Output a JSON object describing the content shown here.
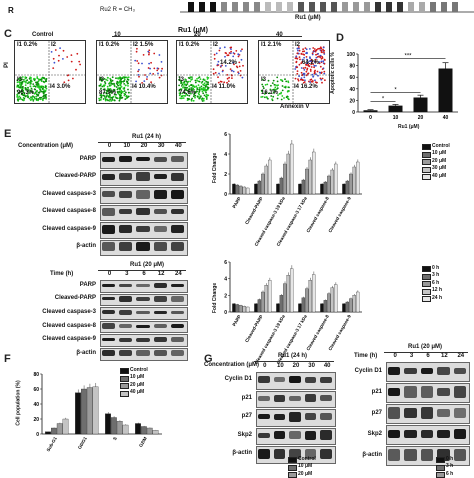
{
  "panels": {
    "C": "C",
    "D": "D",
    "E": "E",
    "F": "F",
    "G": "G"
  },
  "top": {
    "structure_label": "Ru2  R = CH₃",
    "x_label": "Ru1 (μM)"
  },
  "C": {
    "axis_y": "PI",
    "axis_x": "Annexin V",
    "header": "Ru1 (μM)",
    "plots": [
      {
        "title": "Control",
        "q1": "I1 0.2%",
        "q2": "I2",
        "q3": "I3",
        "q3v": "96.3%",
        "q4": "I4 3.0%"
      },
      {
        "title": "10",
        "q1": "I1 0.2%",
        "q2": "I2 1.5%",
        "q3": "I3",
        "q3v": "87.9%",
        "q4": "I4 10.4%"
      },
      {
        "title": "20",
        "q1": "I1 0.2%",
        "q2": "I2",
        "q2v": "14.2%",
        "q3": "I3",
        "q3v": "74.6%",
        "q4": "I4 11.0%"
      },
      {
        "title": "40",
        "q1": "I1 2.1%",
        "q2": "I2",
        "q2v": "64.2%",
        "q3": "I3",
        "q3v": "16.1%",
        "q4": "I4 16.2%"
      }
    ]
  },
  "D": {
    "ylabel": "Apoptotic cells %",
    "xlabel": "Ru1 (μM)",
    "sig": [
      "*",
      "*",
      "***"
    ]
  },
  "E": {
    "blot1": {
      "title": "Ru1 (24 h)",
      "header_label": "Concentration (μM)",
      "lanes": [
        "0",
        "10",
        "20",
        "30",
        "40"
      ],
      "rows": [
        "PARP",
        "Cleaved-PARP",
        "Cleaved caspase-3",
        "Cleaved caspase-8",
        "Cleaved caspase-9",
        "β-actin"
      ]
    },
    "blot2": {
      "title": "Ru1 (20 μM)",
      "header_label": "Time (h)",
      "lanes": [
        "0",
        "3",
        "6",
        "12",
        "24"
      ],
      "rows": [
        "PARP",
        "Cleaved-PARP",
        "Cleaved caspase-3",
        "Cleaved caspase-8",
        "Cleaved caspase-9",
        "β-actin"
      ]
    },
    "chart1_legend": [
      "Control",
      "10 μM",
      "20 μM",
      "30 μM",
      "40 μM"
    ],
    "chart2_legend": [
      "0 h",
      "3 h",
      "6 h",
      "12 h",
      "24 h"
    ],
    "ylabel": "Fold Change"
  },
  "F": {
    "ylabel": "Cell population (%)",
    "legend": [
      "Control",
      "10 μM",
      "20 μM",
      "40 μM"
    ],
    "categories": [
      "Sub-G1",
      "G0/G1",
      "S",
      "G2/M"
    ]
  },
  "G": {
    "blot1": {
      "title": "Ru1 (24 h)",
      "header_label": "Concentration (μM)",
      "lanes": [
        "0",
        "10",
        "20",
        "30",
        "40"
      ],
      "rows": [
        "Cyclin D1",
        "p21",
        "p27",
        "Skp2",
        "β-actin"
      ]
    },
    "blot2": {
      "title": "Ru1 (20 μM)",
      "header_label": "Time (h)",
      "lanes": [
        "0",
        "3",
        "6",
        "12",
        "24"
      ],
      "rows": [
        "Cyclin D1",
        "p21",
        "p27",
        "Skp2",
        "β-actin"
      ]
    }
  },
  "bottom_legend": [
    "Control",
    "10 μM",
    "20 μM"
  ],
  "bottom_legend2": [
    "0 h",
    "3 h",
    "6 h"
  ],
  "chart_data": [
    {
      "type": "bar",
      "id": "D",
      "categories": [
        "0",
        "10",
        "20",
        "40"
      ],
      "values": [
        3,
        11,
        25,
        75
      ],
      "errors": [
        1,
        2,
        4,
        10
      ],
      "ylim": [
        0,
        100
      ],
      "yticks": [
        0,
        20,
        40,
        60,
        80,
        100
      ],
      "ylabel": "Apoptotic cells %",
      "xlabel": "Ru1 (μM)"
    },
    {
      "type": "bar",
      "id": "E1",
      "categories": [
        "PARP",
        "Cleaved-PARP",
        "Cleaved caspase-3 19 kDa",
        "Cleaved caspase-3 17 kDa",
        "Cleaved caspase-8",
        "Cleaved caspase-9"
      ],
      "series": [
        {
          "name": "Control",
          "values": [
            1,
            1,
            1,
            1,
            1,
            1
          ]
        },
        {
          "name": "10 μM",
          "values": [
            0.9,
            1.3,
            1.6,
            1.4,
            1.2,
            1.3
          ]
        },
        {
          "name": "20 μM",
          "values": [
            0.8,
            2.0,
            3.0,
            2.5,
            1.8,
            2.0
          ]
        },
        {
          "name": "30 μM",
          "values": [
            0.7,
            2.8,
            4.0,
            3.4,
            2.4,
            2.7
          ]
        },
        {
          "name": "40 μM",
          "values": [
            0.6,
            3.4,
            5.0,
            4.2,
            3.0,
            3.2
          ]
        }
      ],
      "ylim": [
        0,
        6
      ]
    },
    {
      "type": "bar",
      "id": "E2",
      "categories": [
        "PARP",
        "Cleaved-PARP",
        "Cleaved caspase-3 19 kDa",
        "Cleaved caspase-3 17 kDa",
        "Cleaved caspase-8",
        "Cleaved caspase-9"
      ],
      "series": [
        {
          "name": "0 h",
          "values": [
            1,
            1,
            1,
            1,
            1,
            1
          ]
        },
        {
          "name": "3 h",
          "values": [
            0.9,
            1.5,
            2.0,
            1.7,
            1.4,
            1.2
          ]
        },
        {
          "name": "6 h",
          "values": [
            0.8,
            2.4,
            3.4,
            2.8,
            2.2,
            1.6
          ]
        },
        {
          "name": "12 h",
          "values": [
            0.7,
            3.2,
            4.4,
            3.8,
            2.9,
            2.0
          ]
        },
        {
          "name": "24 h",
          "values": [
            0.6,
            3.8,
            5.2,
            4.5,
            3.3,
            2.4
          ]
        }
      ],
      "ylim": [
        0,
        6
      ]
    },
    {
      "type": "bar",
      "id": "F",
      "categories": [
        "Sub-G1",
        "G0/G1",
        "S",
        "G2/M"
      ],
      "series": [
        {
          "name": "Control",
          "values": [
            3,
            55,
            27,
            14
          ]
        },
        {
          "name": "10 μM",
          "values": [
            8,
            60,
            22,
            10
          ]
        },
        {
          "name": "20 μM",
          "values": [
            14,
            62,
            17,
            8
          ]
        },
        {
          "name": "40 μM",
          "values": [
            20,
            63,
            12,
            5
          ]
        }
      ],
      "ylim": [
        0,
        80
      ],
      "yticks": [
        0,
        20,
        40,
        60,
        80
      ]
    }
  ]
}
